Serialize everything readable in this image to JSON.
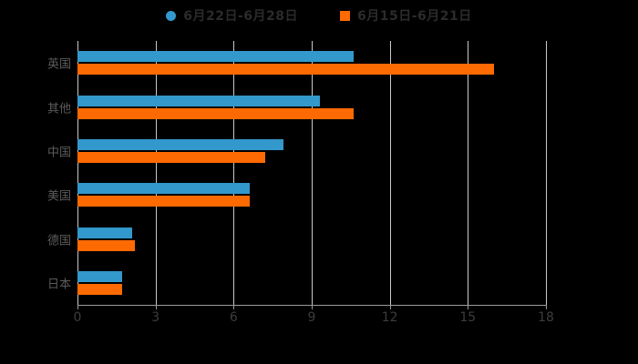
{
  "app": {
    "background_color": "#000000"
  },
  "legend": {
    "position": "top-center",
    "text_color": "#2b2b2b",
    "items": [
      {
        "label": "6月22日-6月28日",
        "marker": "circle-marker-icon",
        "color": "#3398cb"
      },
      {
        "label": "6月15日-6月21日",
        "marker": "square-marker-icon",
        "color": "#fd6a02"
      }
    ]
  },
  "chart_data": {
    "type": "bar",
    "orientation": "horizontal",
    "title": "",
    "xlabel": "",
    "ylabel": "",
    "categories": [
      "英国",
      "其他",
      "中国",
      "美国",
      "德国",
      "日本"
    ],
    "series": [
      {
        "name": "6月22日-6月28日",
        "color": "#3398cb",
        "values": [
          10.6,
          9.3,
          7.9,
          6.6,
          2.1,
          1.7
        ]
      },
      {
        "name": "6月15日-6月21日",
        "color": "#fd6a02",
        "values": [
          16.0,
          10.6,
          7.2,
          6.6,
          2.2,
          1.7
        ]
      }
    ],
    "x_axis": {
      "min": 0,
      "max": 18,
      "tick_interval": 3,
      "tick_labels": [
        "0",
        "3",
        "6",
        "9",
        "12",
        "15",
        "18"
      ],
      "tick_label_color": "#3d3d3d",
      "axis_line_color": "#9b9b9b"
    },
    "y_axis": {
      "label_color": "#5a5a5a"
    },
    "grid": true,
    "gridline_color": "#c9c9c9",
    "legend_position": "top"
  }
}
